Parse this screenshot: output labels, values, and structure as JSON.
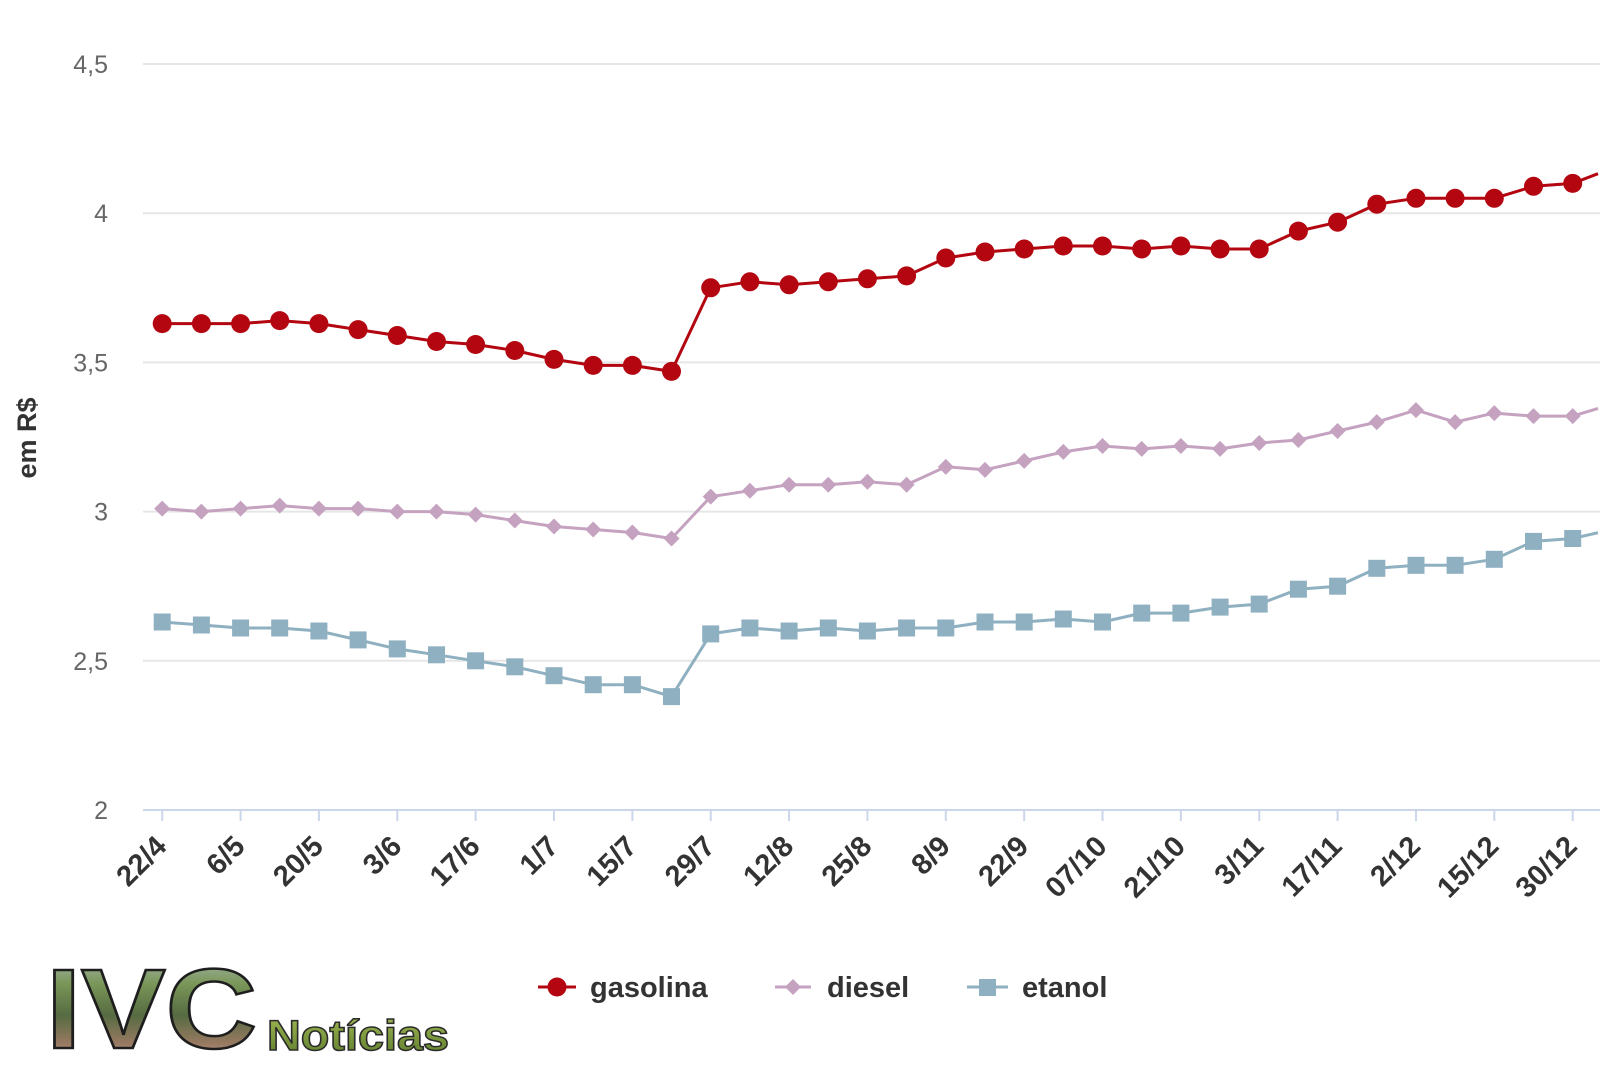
{
  "chart_data": {
    "type": "line",
    "ylabel": "em R$",
    "ylim": [
      2,
      4.5
    ],
    "yticks": [
      2,
      2.5,
      3,
      3.5,
      4,
      4.5
    ],
    "ytick_labels": [
      "2",
      "2,5",
      "3",
      "3,5",
      "4",
      "4,5"
    ],
    "grid": true,
    "legend_position": "bottom",
    "categories": [
      "22/4",
      "",
      "6/5",
      "",
      "20/5",
      "",
      "3/6",
      "",
      "17/6",
      "",
      "1/7",
      "",
      "15/7",
      "",
      "29/7",
      "",
      "12/8",
      "",
      "25/8",
      "",
      "8/9",
      "",
      "22/9",
      "",
      "07/10",
      "",
      "21/10",
      "",
      "3/11",
      "",
      "17/11",
      "",
      "2/12",
      "",
      "15/12",
      "",
      "30/12",
      ""
    ],
    "series": [
      {
        "name": "gasolina",
        "color": "#b30610",
        "marker": "circle",
        "values": [
          3.63,
          3.63,
          3.63,
          3.64,
          3.63,
          3.61,
          3.59,
          3.57,
          3.56,
          3.54,
          3.51,
          3.49,
          3.49,
          3.47,
          3.75,
          3.77,
          3.76,
          3.77,
          3.78,
          3.79,
          3.85,
          3.87,
          3.88,
          3.89,
          3.89,
          3.88,
          3.89,
          3.88,
          3.88,
          3.94,
          3.97,
          4.03,
          4.05,
          4.05,
          4.05,
          4.09,
          4.1,
          4.15
        ]
      },
      {
        "name": "diesel",
        "color": "#c4a2c0",
        "marker": "diamond",
        "values": [
          3.01,
          3.0,
          3.01,
          3.02,
          3.01,
          3.01,
          3.0,
          3.0,
          2.99,
          2.97,
          2.95,
          2.94,
          2.93,
          2.91,
          3.05,
          3.07,
          3.09,
          3.09,
          3.1,
          3.09,
          3.15,
          3.14,
          3.17,
          3.2,
          3.22,
          3.21,
          3.22,
          3.21,
          3.23,
          3.24,
          3.27,
          3.3,
          3.34,
          3.3,
          3.33,
          3.32,
          3.32,
          3.36
        ]
      },
      {
        "name": "etanol",
        "color": "#8fb0c0",
        "marker": "square",
        "values": [
          2.63,
          2.62,
          2.61,
          2.61,
          2.6,
          2.57,
          2.54,
          2.52,
          2.5,
          2.48,
          2.45,
          2.42,
          2.42,
          2.38,
          2.59,
          2.61,
          2.6,
          2.61,
          2.6,
          2.61,
          2.61,
          2.63,
          2.63,
          2.64,
          2.63,
          2.66,
          2.66,
          2.68,
          2.69,
          2.74,
          2.75,
          2.81,
          2.82,
          2.82,
          2.84,
          2.9,
          2.91,
          2.94
        ]
      }
    ]
  },
  "logo": {
    "main": "IVC",
    "sub": "Notícias"
  }
}
